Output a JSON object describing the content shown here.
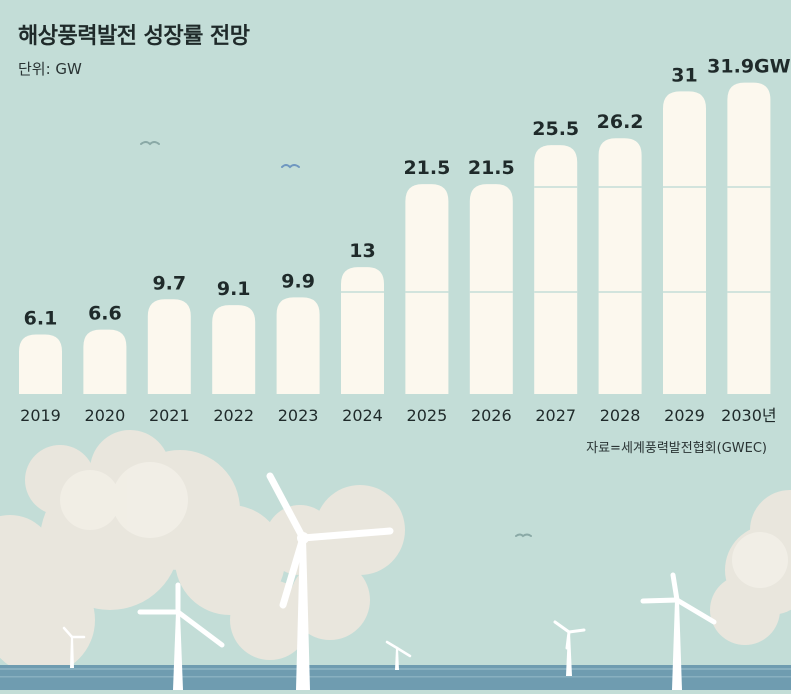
{
  "header": {
    "title": "해상풍력발전 성장률 전망",
    "unit": "단위: GW"
  },
  "source": "자료=세계풍력발전협회(GWEC)",
  "colors": {
    "background": "#c3ddd7",
    "bar": "#fcf8ee",
    "text": "#1f2a2a",
    "sea": "#6f9cb0",
    "cloud": "#eae6dc"
  },
  "chart_data": {
    "type": "bar",
    "categories": [
      "2019",
      "2020",
      "2021",
      "2022",
      "2023",
      "2024",
      "2025",
      "2026",
      "2027",
      "2028",
      "2029",
      "2030년"
    ],
    "values": [
      6.1,
      6.6,
      9.7,
      9.1,
      9.9,
      13,
      21.5,
      21.5,
      25.5,
      26.2,
      31,
      31.9
    ],
    "value_labels": [
      "6.1",
      "6.6",
      "9.7",
      "9.1",
      "9.9",
      "13",
      "21.5",
      "21.5",
      "25.5",
      "26.2",
      "31",
      "31.9GW"
    ],
    "title": "해상풍력발전 성장률 전망",
    "ylabel": "단위: GW",
    "ylim": [
      0,
      33.6
    ],
    "grid": false
  }
}
